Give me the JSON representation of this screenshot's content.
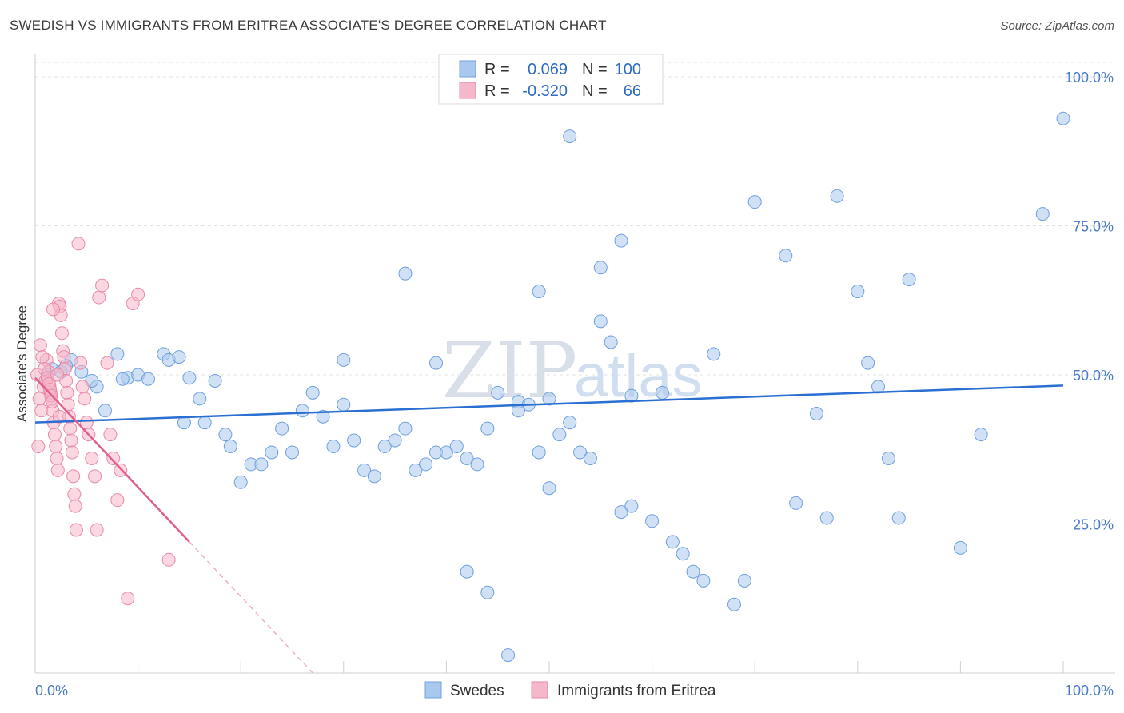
{
  "title": "SWEDISH VS IMMIGRANTS FROM ERITREA ASSOCIATE'S DEGREE CORRELATION CHART",
  "source": "Source: ZipAtlas.com",
  "watermark": {
    "zip": "ZIP",
    "atlas": "atlas"
  },
  "legend": {
    "r_label": "R =",
    "n_label": "N =",
    "rows": [
      {
        "r": "0.069",
        "n": "100",
        "color": "#a9c8ef"
      },
      {
        "r": "-0.320",
        "n": "66",
        "color": "#f5b7c9"
      }
    ]
  },
  "chart_data": {
    "type": "scatter",
    "title": "SWEDISH VS IMMIGRANTS FROM ERITREA ASSOCIATE'S DEGREE CORRELATION CHART",
    "xlabel": "",
    "ylabel": "Associate's Degree",
    "xlim": [
      0,
      100
    ],
    "ylim": [
      0,
      100
    ],
    "x_tick_labels": [
      "0.0%",
      "100.0%"
    ],
    "y_ticks": [
      25,
      50,
      75,
      100
    ],
    "y_tick_labels": [
      "25.0%",
      "50.0%",
      "75.0%",
      "100.0%"
    ],
    "grid": true,
    "legend_position": "top-center",
    "series": [
      {
        "name": "Swedes",
        "color": "#6fa0df",
        "fill": "#a9c8ef",
        "trend": {
          "x": [
            0,
            100
          ],
          "y": [
            42.0,
            48.2
          ]
        },
        "points": [
          [
            1.2,
            50
          ],
          [
            1.6,
            51
          ],
          [
            2.5,
            50.5
          ],
          [
            3.5,
            52.5
          ],
          [
            3,
            51.5
          ],
          [
            4.5,
            50.5
          ],
          [
            6,
            48
          ],
          [
            5.5,
            49
          ],
          [
            6.8,
            44
          ],
          [
            8,
            53.5
          ],
          [
            9,
            49.5
          ],
          [
            10,
            50
          ],
          [
            11,
            49.3
          ],
          [
            8.5,
            49.3
          ],
          [
            12.5,
            53.5
          ],
          [
            13,
            52.5
          ],
          [
            14,
            53
          ],
          [
            15,
            49.5
          ],
          [
            14.5,
            42
          ],
          [
            17.5,
            49
          ],
          [
            16,
            46
          ],
          [
            16.5,
            42
          ],
          [
            18.5,
            40
          ],
          [
            19,
            38
          ],
          [
            20,
            32
          ],
          [
            21,
            35
          ],
          [
            22,
            35
          ],
          [
            23,
            37
          ],
          [
            24,
            41
          ],
          [
            25,
            37
          ],
          [
            26,
            44
          ],
          [
            27,
            47
          ],
          [
            28,
            43
          ],
          [
            30,
            45
          ],
          [
            29,
            38
          ],
          [
            31,
            39
          ],
          [
            32,
            34
          ],
          [
            33,
            33
          ],
          [
            34,
            38
          ],
          [
            35,
            39
          ],
          [
            36,
            41
          ],
          [
            37,
            34
          ],
          [
            38,
            35
          ],
          [
            39,
            37
          ],
          [
            40,
            37
          ],
          [
            41,
            38
          ],
          [
            42,
            36
          ],
          [
            43,
            35
          ],
          [
            44,
            41
          ],
          [
            45,
            47
          ],
          [
            47,
            45.5
          ],
          [
            48,
            45
          ],
          [
            30,
            52.5
          ],
          [
            36,
            67
          ],
          [
            39,
            52
          ],
          [
            47,
            44
          ],
          [
            49,
            37
          ],
          [
            50,
            31
          ],
          [
            50,
            46
          ],
          [
            51,
            40
          ],
          [
            52,
            42
          ],
          [
            53,
            37
          ],
          [
            54,
            36
          ],
          [
            55,
            68
          ],
          [
            56,
            55.5
          ],
          [
            57,
            27
          ],
          [
            58,
            28
          ],
          [
            60,
            25.5
          ],
          [
            61,
            47
          ],
          [
            62,
            22
          ],
          [
            63,
            20
          ],
          [
            64,
            17
          ],
          [
            65,
            15.5
          ],
          [
            66,
            53.5
          ],
          [
            68,
            11.5
          ],
          [
            69,
            15.5
          ],
          [
            52,
            90
          ],
          [
            57,
            72.5
          ],
          [
            70,
            79
          ],
          [
            73,
            70
          ],
          [
            74,
            28.5
          ],
          [
            76,
            43.5
          ],
          [
            77,
            26
          ],
          [
            78,
            80
          ],
          [
            80,
            64
          ],
          [
            81,
            52
          ],
          [
            82,
            48
          ],
          [
            83,
            36
          ],
          [
            84,
            26
          ],
          [
            85,
            66
          ],
          [
            90,
            21
          ],
          [
            92,
            40
          ],
          [
            98,
            77
          ],
          [
            100,
            93
          ],
          [
            42,
            17
          ],
          [
            44,
            13.5
          ],
          [
            46,
            3
          ],
          [
            49,
            64
          ],
          [
            55,
            59
          ],
          [
            58,
            46.5
          ]
        ]
      },
      {
        "name": "Immigrants from Eritrea",
        "color": "#e88aa8",
        "fill": "#f5b7c9",
        "trend": {
          "x": [
            0,
            15
          ],
          "y": [
            49.5,
            22.0
          ]
        },
        "trend_dashed": {
          "x": [
            15,
            27
          ],
          "y": [
            22.0,
            0
          ]
        },
        "points": [
          [
            0.2,
            50
          ],
          [
            0.4,
            46
          ],
          [
            0.6,
            44
          ],
          [
            0.8,
            48
          ],
          [
            1,
            49
          ],
          [
            1.1,
            52.5
          ],
          [
            1.3,
            50.5
          ],
          [
            1.4,
            48
          ],
          [
            1.5,
            47
          ],
          [
            1.6,
            46
          ],
          [
            1.7,
            44
          ],
          [
            1.8,
            42
          ],
          [
            1.9,
            40
          ],
          [
            2,
            38
          ],
          [
            2.1,
            36
          ],
          [
            2.2,
            34
          ],
          [
            2.3,
            62
          ],
          [
            2.4,
            61.5
          ],
          [
            2.5,
            60
          ],
          [
            2.6,
            57
          ],
          [
            2.7,
            54
          ],
          [
            2.8,
            53
          ],
          [
            2.9,
            51
          ],
          [
            3,
            49
          ],
          [
            3.1,
            47
          ],
          [
            3.2,
            45
          ],
          [
            3.3,
            43
          ],
          [
            3.4,
            41
          ],
          [
            3.5,
            39
          ],
          [
            3.6,
            37
          ],
          [
            3.7,
            33
          ],
          [
            3.8,
            30
          ],
          [
            3.9,
            28
          ],
          [
            4,
            24
          ],
          [
            4.2,
            72
          ],
          [
            4.4,
            52
          ],
          [
            4.6,
            48
          ],
          [
            4.8,
            46
          ],
          [
            5,
            42
          ],
          [
            5.2,
            40
          ],
          [
            5.5,
            36
          ],
          [
            5.8,
            33
          ],
          [
            6,
            24
          ],
          [
            6.2,
            63
          ],
          [
            6.5,
            65
          ],
          [
            7,
            52
          ],
          [
            7.3,
            40
          ],
          [
            7.6,
            36
          ],
          [
            8,
            29
          ],
          [
            8.3,
            34
          ],
          [
            9,
            12.5
          ],
          [
            9.5,
            62
          ],
          [
            10,
            63.5
          ],
          [
            13,
            19
          ],
          [
            0.5,
            55
          ],
          [
            0.7,
            53
          ],
          [
            0.9,
            51
          ],
          [
            1.2,
            49.5
          ],
          [
            1.35,
            48.5
          ],
          [
            1.45,
            47.5
          ],
          [
            1.55,
            46.5
          ],
          [
            1.65,
            45.5
          ],
          [
            1.75,
            61
          ],
          [
            2.15,
            50
          ],
          [
            2.35,
            43
          ],
          [
            0.3,
            38
          ]
        ]
      }
    ]
  },
  "bottom_legend": [
    {
      "label": "Swedes",
      "color": "#a9c8ef"
    },
    {
      "label": "Immigrants from Eritrea",
      "color": "#f5b7c9"
    }
  ]
}
